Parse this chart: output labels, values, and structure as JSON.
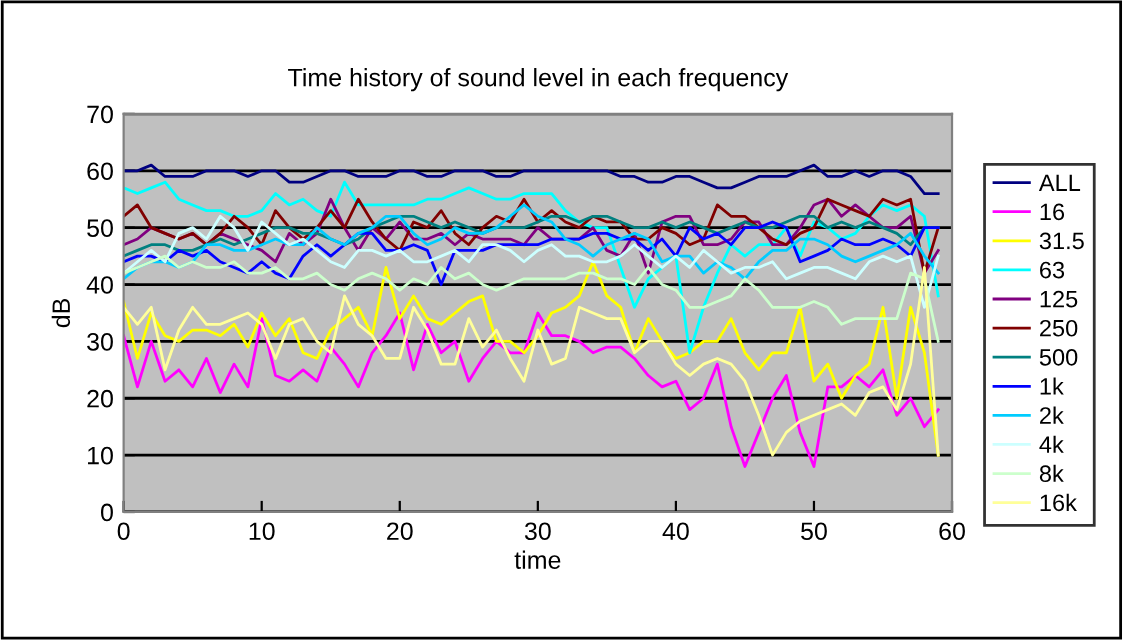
{
  "chart_data": {
    "type": "line",
    "title": "Time history of sound level in each frequency",
    "xlabel": "time",
    "ylabel": "dB",
    "xlim": [
      0,
      60
    ],
    "xticks": [
      0,
      10,
      20,
      30,
      40,
      50,
      60
    ],
    "ylim": [
      0,
      70
    ],
    "yticks": [
      0,
      10,
      20,
      30,
      40,
      50,
      60,
      70
    ],
    "grid": "y",
    "legend": "right",
    "marker": "none",
    "line_style": "solid",
    "x": [
      0,
      1,
      2,
      3,
      4,
      5,
      6,
      7,
      8,
      9,
      10,
      11,
      12,
      13,
      14,
      15,
      16,
      17,
      18,
      19,
      20,
      21,
      22,
      23,
      24,
      25,
      26,
      27,
      28,
      29,
      30,
      31,
      32,
      33,
      34,
      35,
      36,
      37,
      38,
      39,
      40,
      41,
      42,
      43,
      44,
      45,
      46,
      47,
      48,
      49,
      50,
      51,
      52,
      53,
      54,
      55,
      56,
      57,
      58,
      59
    ],
    "series": [
      {
        "name": "ALL",
        "color": "#000080",
        "values": [
          60,
          60,
          61,
          59,
          59,
          59,
          60,
          60,
          60,
          59,
          60,
          60,
          58,
          58,
          59,
          60,
          60,
          59,
          59,
          59,
          60,
          60,
          59,
          59,
          60,
          60,
          60,
          59,
          59,
          60,
          60,
          60,
          60,
          60,
          60,
          60,
          59,
          59,
          58,
          58,
          59,
          59,
          58,
          57,
          57,
          58,
          59,
          59,
          59,
          60,
          61,
          59,
          59,
          60,
          59,
          60,
          60,
          59,
          56,
          56
        ]
      },
      {
        "name": "16",
        "color": "#ff00ff",
        "values": [
          31,
          22,
          30,
          23,
          25,
          22,
          27,
          21,
          26,
          22,
          34,
          24,
          23,
          25,
          23,
          29,
          26,
          22,
          28,
          31,
          35,
          25,
          33,
          28,
          30,
          23,
          27,
          30,
          28,
          28,
          35,
          31,
          31,
          30,
          28,
          29,
          29,
          27,
          24,
          22,
          23,
          18,
          20,
          26,
          15,
          8,
          14,
          20,
          24,
          14,
          8,
          22,
          22,
          24,
          22,
          25,
          17,
          20,
          15,
          18
        ]
      },
      {
        "name": "31.5",
        "color": "#ffff00",
        "values": [
          37,
          27,
          35,
          31,
          30,
          32,
          32,
          31,
          33,
          29,
          35,
          31,
          34,
          28,
          27,
          32,
          34,
          36,
          31,
          43,
          34,
          38,
          34,
          33,
          35,
          37,
          38,
          30,
          30,
          28,
          31,
          35,
          36,
          38,
          44,
          38,
          36,
          28,
          34,
          30,
          27,
          28,
          30,
          30,
          34,
          28,
          25,
          28,
          28,
          36,
          23,
          26,
          20,
          24,
          26,
          36,
          20,
          36,
          28,
          10
        ]
      },
      {
        "name": "63",
        "color": "#00ffff",
        "values": [
          57,
          56,
          57,
          58,
          55,
          54,
          53,
          53,
          52,
          52,
          53,
          56,
          54,
          55,
          53,
          52,
          58,
          54,
          54,
          54,
          54,
          54,
          55,
          55,
          56,
          57,
          56,
          55,
          55,
          56,
          56,
          56,
          53,
          51,
          50,
          50,
          43,
          36,
          41,
          43,
          45,
          28,
          36,
          42,
          47,
          45,
          47,
          47,
          50,
          45,
          51,
          50,
          48,
          49,
          52,
          54,
          53,
          54,
          52,
          38
        ]
      },
      {
        "name": "125",
        "color": "#800080",
        "values": [
          47,
          48,
          50,
          49,
          48,
          49,
          47,
          49,
          48,
          47,
          46,
          44,
          49,
          47,
          49,
          55,
          50,
          46,
          50,
          48,
          51,
          48,
          48,
          49,
          47,
          49,
          48,
          48,
          48,
          47,
          50,
          48,
          48,
          48,
          50,
          46,
          45,
          49,
          42,
          51,
          52,
          52,
          47,
          47,
          48,
          51,
          51,
          47,
          47,
          50,
          54,
          55,
          52,
          54,
          52,
          50,
          50,
          52,
          42,
          46
        ]
      },
      {
        "name": "250",
        "color": "#800000",
        "values": [
          52,
          54,
          50,
          49,
          48,
          49,
          47,
          49,
          52,
          50,
          47,
          53,
          50,
          48,
          50,
          53,
          50,
          55,
          51,
          48,
          46,
          51,
          50,
          53,
          49,
          47,
          50,
          52,
          51,
          55,
          51,
          53,
          51,
          50,
          52,
          51,
          51,
          48,
          48,
          50,
          49,
          47,
          48,
          54,
          52,
          52,
          50,
          48,
          47,
          49,
          50,
          55,
          54,
          53,
          52,
          55,
          54,
          55,
          42,
          50
        ]
      },
      {
        "name": "500",
        "color": "#008080",
        "values": [
          45,
          46,
          47,
          47,
          46,
          46,
          47,
          48,
          47,
          48,
          49,
          50,
          50,
          49,
          49,
          48,
          47,
          48,
          50,
          51,
          52,
          52,
          51,
          50,
          51,
          50,
          49,
          50,
          50,
          50,
          51,
          52,
          52,
          51,
          52,
          52,
          51,
          50,
          50,
          51,
          50,
          51,
          50,
          49,
          50,
          51,
          50,
          50,
          51,
          52,
          52,
          50,
          51,
          50,
          51,
          50,
          49,
          47,
          50,
          50
        ]
      },
      {
        "name": "1k",
        "color": "#0000ff",
        "values": [
          44,
          45,
          45,
          44,
          46,
          45,
          46,
          44,
          43,
          42,
          44,
          42,
          41,
          45,
          47,
          45,
          47,
          49,
          49,
          46,
          46,
          47,
          46,
          40,
          46,
          46,
          46,
          47,
          47,
          47,
          47,
          48,
          48,
          48,
          49,
          49,
          48,
          48,
          46,
          48,
          45,
          50,
          48,
          49,
          47,
          50,
          50,
          51,
          50,
          44,
          45,
          46,
          48,
          47,
          47,
          48,
          47,
          45,
          50,
          50
        ]
      },
      {
        "name": "2k",
        "color": "#00ccff",
        "values": [
          41,
          43,
          44,
          44,
          43,
          44,
          47,
          47,
          46,
          46,
          47,
          48,
          47,
          47,
          50,
          48,
          47,
          49,
          50,
          52,
          52,
          49,
          47,
          48,
          50,
          49,
          49,
          50,
          52,
          54,
          52,
          51,
          48,
          47,
          45,
          47,
          48,
          49,
          48,
          44,
          45,
          45,
          42,
          44,
          43,
          41,
          44,
          46,
          46,
          48,
          48,
          47,
          45,
          44,
          45,
          46,
          47,
          49,
          45,
          42
        ]
      },
      {
        "name": "4k",
        "color": "#ccffff",
        "values": [
          42,
          44,
          46,
          44,
          49,
          50,
          48,
          52,
          50,
          46,
          51,
          49,
          47,
          48,
          46,
          44,
          43,
          46,
          46,
          45,
          46,
          44,
          44,
          45,
          46,
          44,
          47,
          47,
          46,
          44,
          46,
          47,
          45,
          45,
          44,
          44,
          45,
          47,
          45,
          43,
          45,
          43,
          46,
          44,
          42,
          43,
          43,
          44,
          41,
          42,
          43,
          43,
          42,
          41,
          44,
          45,
          44,
          45,
          36,
          45
        ]
      },
      {
        "name": "8k",
        "color": "#ccffcc",
        "values": [
          42,
          43,
          44,
          45,
          43,
          44,
          43,
          43,
          44,
          42,
          42,
          43,
          41,
          41,
          42,
          40,
          39,
          41,
          42,
          41,
          39,
          41,
          40,
          43,
          41,
          42,
          40,
          39,
          40,
          41,
          41,
          41,
          41,
          42,
          42,
          41,
          41,
          40,
          43,
          40,
          39,
          36,
          36,
          37,
          38,
          41,
          39,
          36,
          36,
          36,
          37,
          36,
          33,
          34,
          34,
          34,
          34,
          42,
          41,
          30
        ]
      },
      {
        "name": "16k",
        "color": "#ffff99",
        "values": [
          36,
          33,
          36,
          25,
          32,
          36,
          33,
          33,
          34,
          35,
          33,
          27,
          33,
          34,
          30,
          28,
          38,
          33,
          31,
          27,
          27,
          36,
          32,
          26,
          26,
          34,
          29,
          32,
          27,
          23,
          32,
          26,
          27,
          36,
          35,
          34,
          34,
          28,
          30,
          30,
          26,
          24,
          26,
          27,
          26,
          23,
          17,
          10,
          14,
          16,
          17,
          18,
          19,
          17,
          21,
          22,
          18,
          26,
          43,
          10
        ]
      }
    ]
  }
}
